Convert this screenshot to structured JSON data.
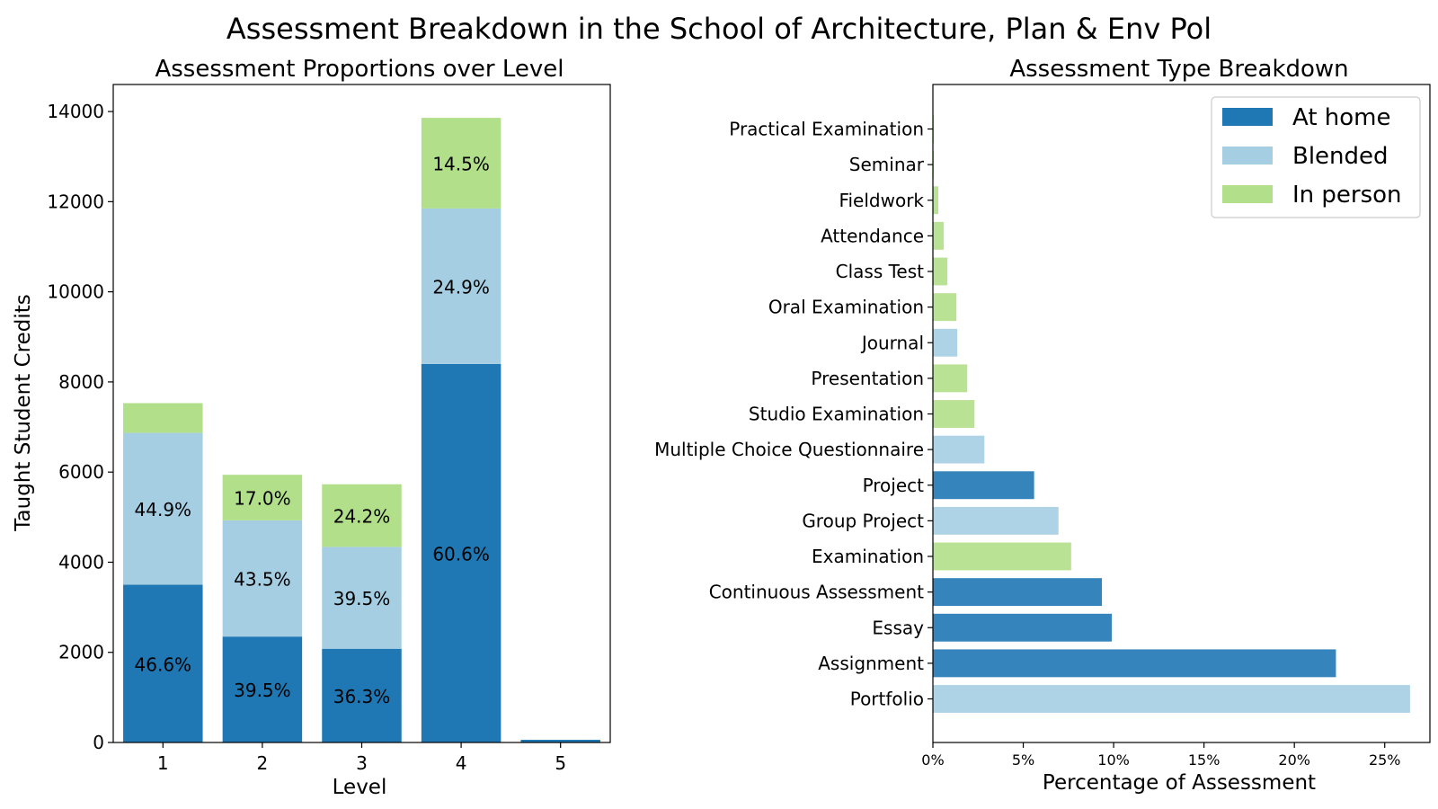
{
  "figure": {
    "title": "Assessment Breakdown in the School of Architecture, Plan & Env Pol"
  },
  "chart_data": [
    {
      "type": "bar",
      "stacked": true,
      "title": "Assessment Proportions over Level",
      "xlabel": "Level",
      "ylabel": "Taught Student Credits",
      "categories": [
        "1",
        "2",
        "3",
        "4",
        "5"
      ],
      "ylim": [
        0,
        14600
      ],
      "yticks": [
        0,
        2000,
        4000,
        6000,
        8000,
        10000,
        12000,
        14000
      ],
      "series": [
        {
          "key": "home",
          "color": "#1f77b4",
          "values": [
            3500,
            2350,
            2080,
            8400,
            60
          ],
          "labels": [
            "46.6%",
            "39.5%",
            "36.3%",
            "60.6%",
            ""
          ]
        },
        {
          "key": "blended",
          "color": "#a6cee3",
          "values": [
            3370,
            2580,
            2260,
            3450,
            0
          ],
          "labels": [
            "44.9%",
            "43.5%",
            "39.5%",
            "24.9%",
            ""
          ]
        },
        {
          "key": "inperson",
          "color": "#b2df8a",
          "values": [
            660,
            1010,
            1390,
            2010,
            0
          ],
          "labels": [
            "",
            "17.0%",
            "24.2%",
            "14.5%",
            ""
          ]
        }
      ]
    },
    {
      "type": "bar",
      "orientation": "horizontal",
      "title": "Assessment Type Breakdown",
      "xlabel": "Percentage of Assessment",
      "xlim": [
        0,
        27.5
      ],
      "xticks": [
        0,
        5,
        10,
        15,
        20,
        25
      ],
      "xtick_labels": [
        "0%",
        "5%",
        "10%",
        "15%",
        "20%",
        "25%"
      ],
      "categories": [
        "Practical Examination",
        "Seminar",
        "Fieldwork",
        "Attendance",
        "Class Test",
        "Oral Examination",
        "Journal",
        "Presentation",
        "Studio Examination",
        "Multiple Choice Questionnaire",
        "Project",
        "Group Project",
        "Examination",
        "Continuous Assessment",
        "Essay",
        "Assignment",
        "Portfolio"
      ],
      "values": [
        0.05,
        0.05,
        0.3,
        0.6,
        0.8,
        1.3,
        1.35,
        1.9,
        2.3,
        2.85,
        5.6,
        6.95,
        7.65,
        9.35,
        9.9,
        22.3,
        26.4
      ],
      "bar_types": [
        "inperson",
        "inperson",
        "inperson",
        "inperson",
        "inperson",
        "inperson",
        "blended",
        "inperson",
        "inperson",
        "blended",
        "home",
        "blended",
        "inperson",
        "home",
        "home",
        "home",
        "blended"
      ],
      "legend": {
        "position": "top-right",
        "entries": [
          {
            "key": "home",
            "label": "At home",
            "color": "#1f77b4"
          },
          {
            "key": "blended",
            "label": "Blended",
            "color": "#a6cee3"
          },
          {
            "key": "inperson",
            "label": "In person",
            "color": "#b2df8a"
          }
        ]
      }
    }
  ]
}
